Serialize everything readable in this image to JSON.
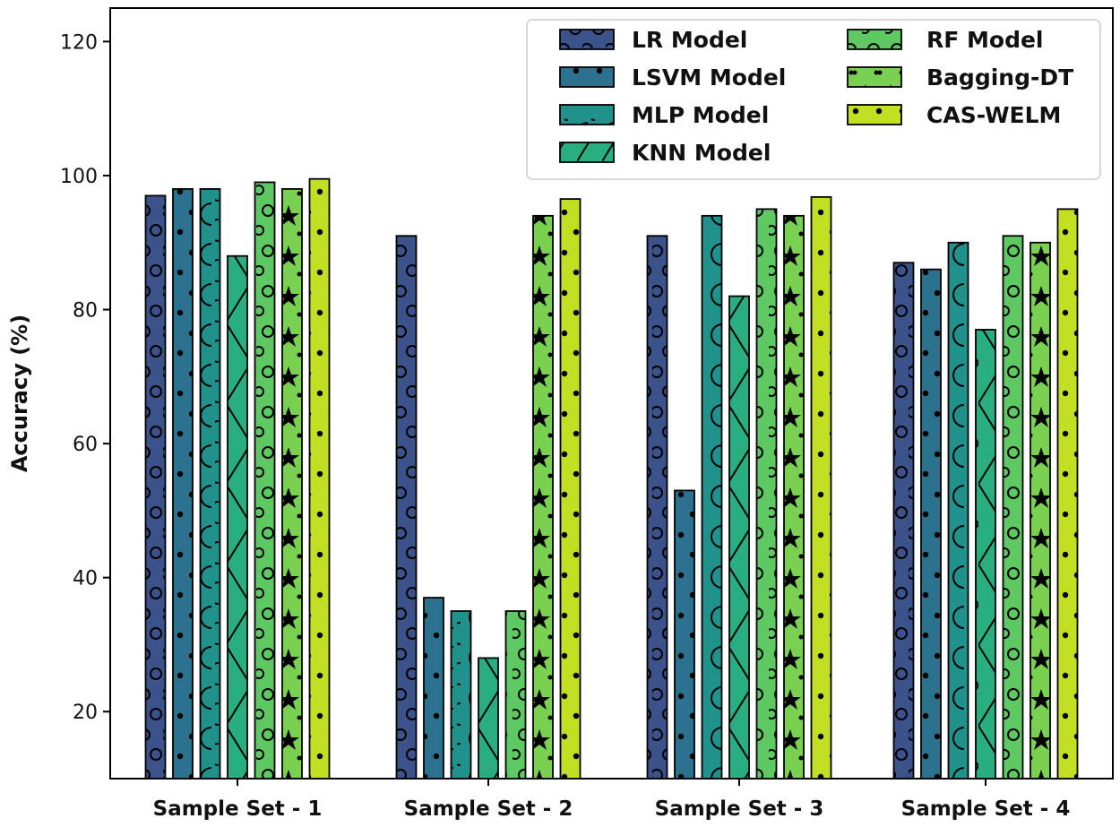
{
  "chart_data": {
    "type": "bar",
    "title": "",
    "xlabel": "",
    "ylabel": "Accuracy (%)",
    "ylim": [
      10,
      125
    ],
    "yticks": [
      20,
      40,
      60,
      80,
      100,
      120
    ],
    "grid": false,
    "legend_position": "top-right",
    "categories": [
      "Sample Set - 1",
      "Sample Set - 2",
      "Sample Set - 3",
      "Sample Set - 4"
    ],
    "series": [
      {
        "name": "LR Model",
        "color": "#3b528b",
        "pattern": "circles",
        "values": [
          97,
          91,
          91,
          87
        ]
      },
      {
        "name": "LSVM Model",
        "color": "#2c728e",
        "pattern": "dots",
        "values": [
          98,
          37,
          53,
          86
        ]
      },
      {
        "name": "MLP Model",
        "color": "#21918c",
        "pattern": "arcs",
        "values": [
          98,
          35,
          94,
          90
        ]
      },
      {
        "name": "KNN Model",
        "color": "#28ae80",
        "pattern": "cross",
        "values": [
          88,
          28,
          82,
          77
        ]
      },
      {
        "name": "RF Model",
        "color": "#5ec962",
        "pattern": "rings",
        "values": [
          99,
          35,
          95,
          91
        ]
      },
      {
        "name": "Bagging-DT",
        "color": "#7ad151",
        "pattern": "stars",
        "values": [
          98,
          94,
          94,
          90
        ]
      },
      {
        "name": "CAS-WELM",
        "color": "#c2df23",
        "pattern": "dots",
        "values": [
          99.5,
          96.5,
          96.8,
          95
        ]
      }
    ]
  }
}
